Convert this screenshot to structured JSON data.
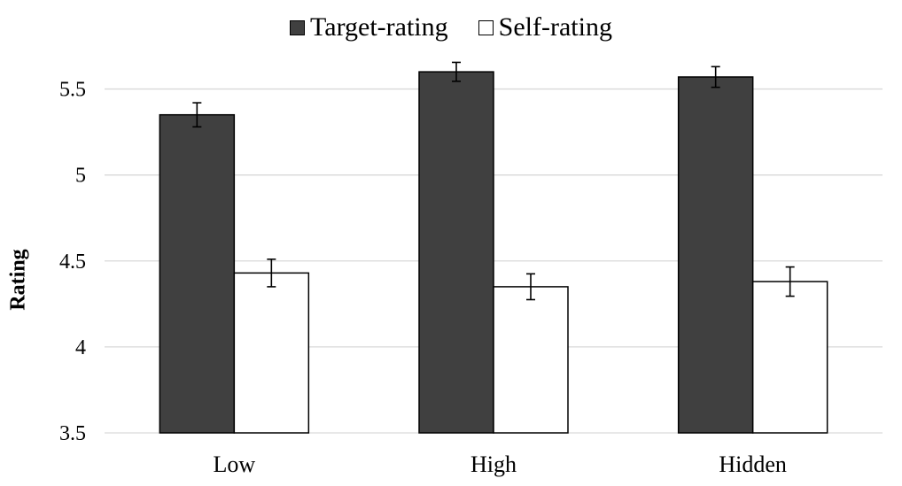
{
  "chart_data": {
    "type": "bar",
    "title": "",
    "xlabel": "",
    "ylabel": "Rating",
    "categories": [
      "Low",
      "High",
      "Hidden"
    ],
    "ylim": [
      3.5,
      5.75
    ],
    "yticks": [
      "3.5",
      "4",
      "4.5",
      "5",
      "5.5"
    ],
    "ytick_values": [
      3.5,
      4,
      4.5,
      5,
      5.5
    ],
    "grid": true,
    "legend_position": "top-center",
    "series": [
      {
        "name": "Target-rating",
        "color": "#404040",
        "values": [
          5.35,
          5.6,
          5.57
        ],
        "error": [
          0.07,
          0.055,
          0.06
        ]
      },
      {
        "name": "Self-rating",
        "color": "#ffffff",
        "values": [
          4.43,
          4.35,
          4.38
        ],
        "error": [
          0.08,
          0.075,
          0.085
        ]
      }
    ]
  }
}
